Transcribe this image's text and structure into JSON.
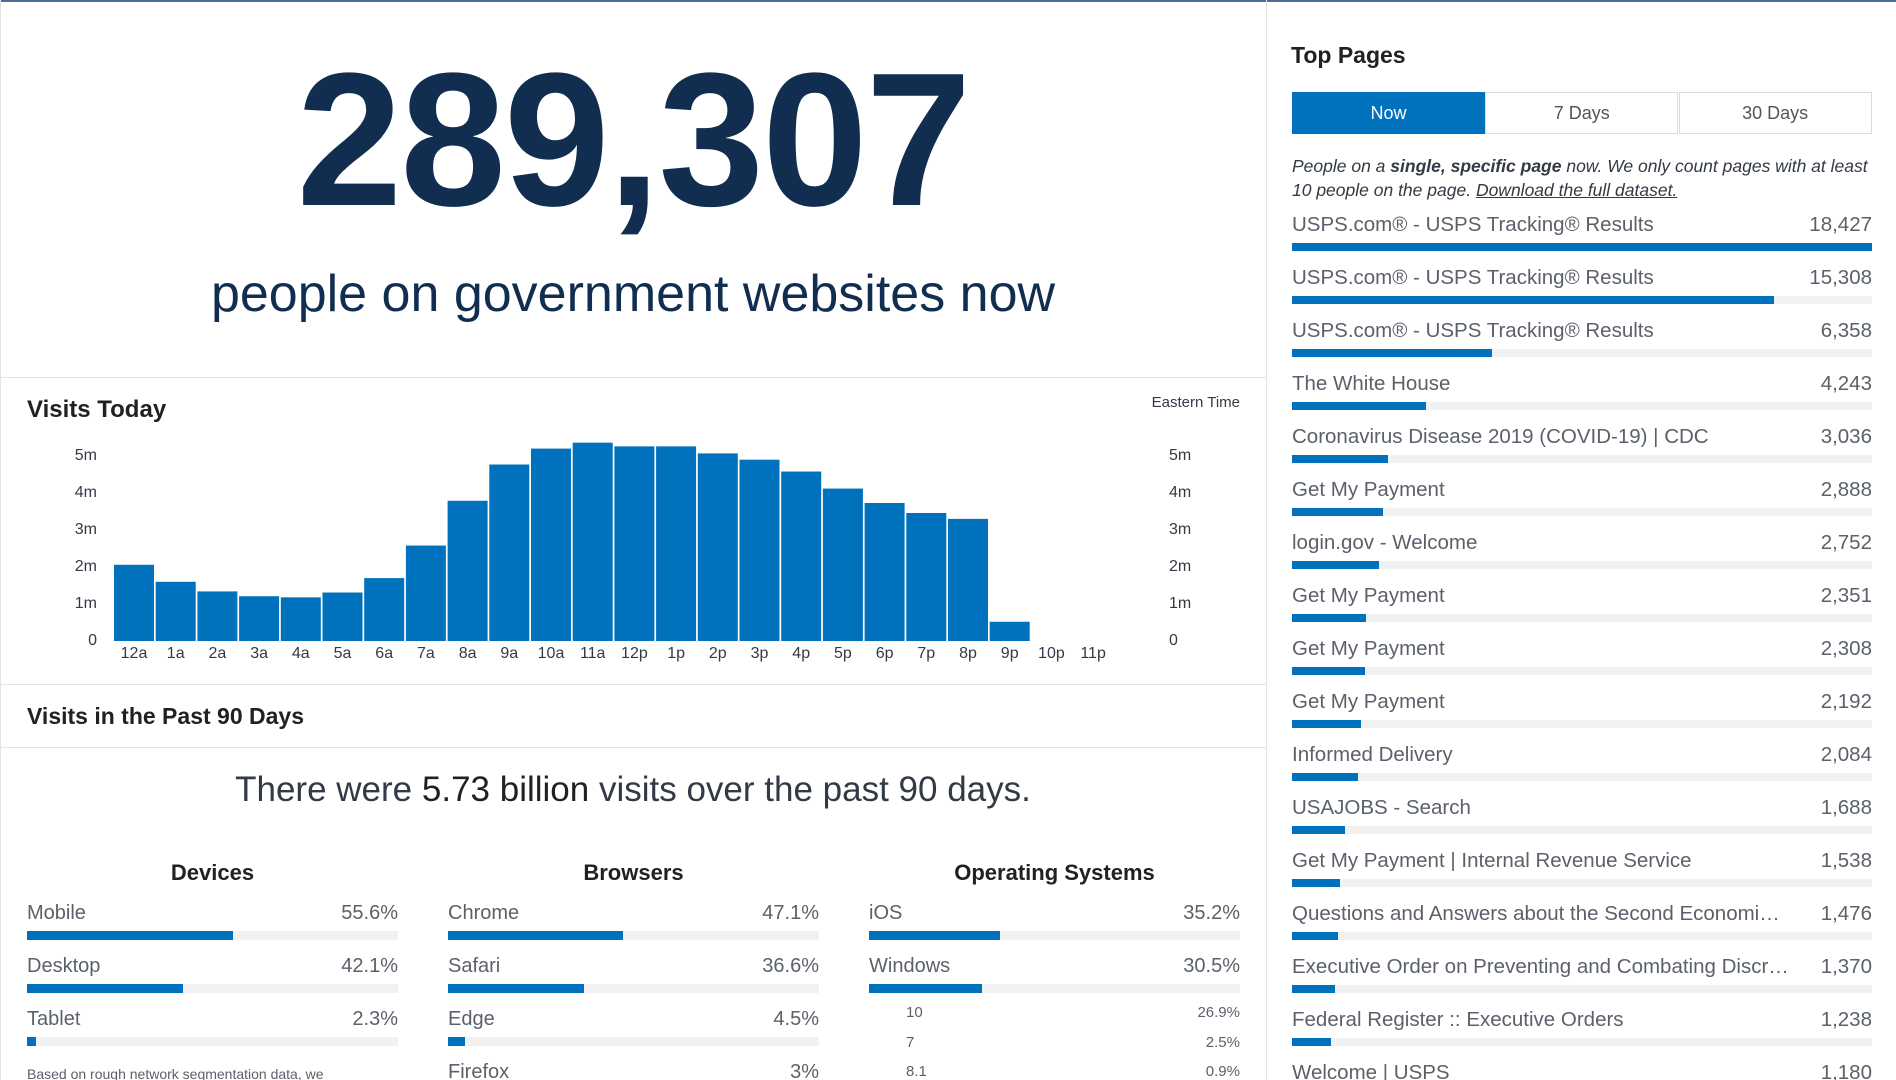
{
  "header": {
    "count": "289,307",
    "caption": "people on government websites now"
  },
  "visits_today": {
    "type": "bar",
    "title": "Visits Today",
    "note": "Eastern Time",
    "categories": [
      "12a",
      "1a",
      "2a",
      "3a",
      "4a",
      "5a",
      "6a",
      "7a",
      "8a",
      "9a",
      "10a",
      "11a",
      "12p",
      "1p",
      "2p",
      "3p",
      "4p",
      "5p",
      "6p",
      "7p",
      "8p",
      "9p",
      "10p",
      "11p"
    ],
    "values": [
      2060000,
      1600000,
      1340000,
      1210000,
      1180000,
      1310000,
      1700000,
      2580000,
      3790000,
      4770000,
      5200000,
      5360000,
      5260000,
      5260000,
      5070000,
      4900000,
      4580000,
      4120000,
      3730000,
      3460000,
      3300000,
      520000,
      null,
      null
    ],
    "color": "#0071bc",
    "ylim": [
      0,
      5500000
    ],
    "yticks": [
      0,
      {
        "value": 1000000,
        "label": "1m"
      },
      {
        "value": 2000000,
        "label": "2m"
      },
      {
        "value": 3000000,
        "label": "3m"
      },
      {
        "value": 4000000,
        "label": "4m"
      },
      {
        "value": 5000000,
        "label": "5m"
      }
    ]
  },
  "past_90_days": {
    "title": "Visits in the Past 90 Days",
    "summary": {
      "before": "There were",
      "highlight": "5.73 billion",
      "after": "visits over the past 90 days."
    },
    "devices": {
      "title": "Devices",
      "items": [
        {
          "name": "Mobile",
          "value": 55.6,
          "value_label": "55.6%"
        },
        {
          "name": "Desktop",
          "value": 42.1,
          "value_label": "42.1%"
        },
        {
          "name": "Tablet",
          "value": 2.3,
          "value_label": "2.3%"
        }
      ]
    },
    "browsers": {
      "title": "Browsers",
      "items": [
        {
          "name": "Chrome",
          "value": 47.1,
          "value_label": "47.1%"
        },
        {
          "name": "Safari",
          "value": 36.6,
          "value_label": "36.6%"
        },
        {
          "name": "Edge",
          "value": 4.5,
          "value_label": "4.5%"
        },
        {
          "name": "Firefox",
          "value": 3,
          "value_label": "3%"
        }
      ]
    },
    "operating_systems": {
      "title": "Operating Systems",
      "items": [
        {
          "name": "iOS",
          "value": 35.2,
          "value_label": "35.2%"
        },
        {
          "name": "Windows",
          "value": 30.5,
          "value_label": "30.5%"
        }
      ],
      "windows_versions": [
        {
          "name": "10",
          "share": "26.9%"
        },
        {
          "name": "7",
          "share": "2.5%"
        },
        {
          "name": "8.1",
          "share": "0.9%"
        }
      ]
    },
    "footnote": "Based on rough network segmentation data, we"
  },
  "top_pages": {
    "title": "Top Pages",
    "tabs": [
      "Now",
      "7 Days",
      "30 Days"
    ],
    "description": {
      "before": "People on a",
      "emphasis": "single, specific page",
      "after": "now. We only count pages with at least 10 people on the page.",
      "link": "Download the full dataset."
    },
    "pages": [
      {
        "title": "USPS.com® - USPS Tracking® Results",
        "value": 18427,
        "value_label": "18,427"
      },
      {
        "title": "USPS.com® - USPS Tracking® Results",
        "value": 15308,
        "value_label": "15,308"
      },
      {
        "title": "USPS.com® - USPS Tracking® Results",
        "value": 6358,
        "value_label": "6,358"
      },
      {
        "title": "The White House",
        "value": 4243,
        "value_label": "4,243"
      },
      {
        "title": "Coronavirus Disease 2019 (COVID-19) | CDC",
        "value": 3036,
        "value_label": "3,036"
      },
      {
        "title": "Get My Payment",
        "value": 2888,
        "value_label": "2,888"
      },
      {
        "title": "login.gov - Welcome",
        "value": 2752,
        "value_label": "2,752"
      },
      {
        "title": "Get My Payment",
        "value": 2351,
        "value_label": "2,351"
      },
      {
        "title": "Get My Payment",
        "value": 2308,
        "value_label": "2,308"
      },
      {
        "title": "Get My Payment",
        "value": 2192,
        "value_label": "2,192"
      },
      {
        "title": "Informed Delivery",
        "value": 2084,
        "value_label": "2,084"
      },
      {
        "title": "USAJOBS - Search",
        "value": 1688,
        "value_label": "1,688"
      },
      {
        "title": "Get My Payment | Internal Revenue Service",
        "value": 1538,
        "value_label": "1,538"
      },
      {
        "title": "Questions and Answers about the Second Economi…",
        "value": 1476,
        "value_label": "1,476"
      },
      {
        "title": "Executive Order on Preventing and Combating Discr…",
        "value": 1370,
        "value_label": "1,370"
      },
      {
        "title": "Federal Register :: Executive Orders",
        "value": 1238,
        "value_label": "1,238"
      },
      {
        "title": "Welcome | USPS",
        "value": 1180,
        "value_label": "1,180"
      }
    ]
  }
}
